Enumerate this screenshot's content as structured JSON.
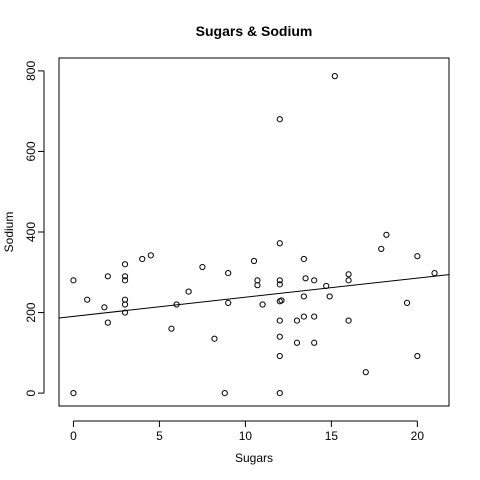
{
  "chart_data": {
    "type": "scatter",
    "title": "Sugars & Sodium",
    "xlabel": "Sugars",
    "ylabel": "Sodium",
    "xlim": [
      -0.84,
      21.84
    ],
    "ylim": [
      -32,
      832
    ],
    "x_ticks": [
      "0",
      "5",
      "10",
      "15",
      "20"
    ],
    "y_ticks": [
      "0",
      "200",
      "400",
      "600",
      "800"
    ],
    "grid": false,
    "legend": "none",
    "points": [
      {
        "x": 0,
        "y": 280
      },
      {
        "x": 0,
        "y": 0
      },
      {
        "x": 0.8,
        "y": 232
      },
      {
        "x": 1.8,
        "y": 213
      },
      {
        "x": 2,
        "y": 290
      },
      {
        "x": 2,
        "y": 175
      },
      {
        "x": 3,
        "y": 320
      },
      {
        "x": 3,
        "y": 290
      },
      {
        "x": 3,
        "y": 280
      },
      {
        "x": 3,
        "y": 232
      },
      {
        "x": 3,
        "y": 220
      },
      {
        "x": 3,
        "y": 200
      },
      {
        "x": 4,
        "y": 333
      },
      {
        "x": 4.5,
        "y": 342
      },
      {
        "x": 5.7,
        "y": 160
      },
      {
        "x": 6,
        "y": 220
      },
      {
        "x": 6.7,
        "y": 252
      },
      {
        "x": 7.5,
        "y": 313
      },
      {
        "x": 8.2,
        "y": 135
      },
      {
        "x": 8.8,
        "y": 0
      },
      {
        "x": 9,
        "y": 298
      },
      {
        "x": 9,
        "y": 224
      },
      {
        "x": 10.5,
        "y": 328
      },
      {
        "x": 10.7,
        "y": 280
      },
      {
        "x": 10.7,
        "y": 268
      },
      {
        "x": 11,
        "y": 220
      },
      {
        "x": 12,
        "y": 680
      },
      {
        "x": 12,
        "y": 372
      },
      {
        "x": 12,
        "y": 280
      },
      {
        "x": 12,
        "y": 270
      },
      {
        "x": 12,
        "y": 228
      },
      {
        "x": 12.1,
        "y": 230
      },
      {
        "x": 12,
        "y": 180
      },
      {
        "x": 12,
        "y": 140
      },
      {
        "x": 12,
        "y": 92
      },
      {
        "x": 12,
        "y": 0
      },
      {
        "x": 13,
        "y": 180
      },
      {
        "x": 13,
        "y": 125
      },
      {
        "x": 13.4,
        "y": 333
      },
      {
        "x": 13.4,
        "y": 240
      },
      {
        "x": 13.4,
        "y": 190
      },
      {
        "x": 13.5,
        "y": 285
      },
      {
        "x": 14,
        "y": 280
      },
      {
        "x": 14,
        "y": 190
      },
      {
        "x": 14,
        "y": 125
      },
      {
        "x": 14.7,
        "y": 266
      },
      {
        "x": 14.9,
        "y": 240
      },
      {
        "x": 15.2,
        "y": 787
      },
      {
        "x": 16,
        "y": 295
      },
      {
        "x": 16,
        "y": 280
      },
      {
        "x": 16,
        "y": 180
      },
      {
        "x": 17,
        "y": 52
      },
      {
        "x": 17.9,
        "y": 358
      },
      {
        "x": 18.2,
        "y": 393
      },
      {
        "x": 19.4,
        "y": 224
      },
      {
        "x": 20,
        "y": 340
      },
      {
        "x": 20,
        "y": 92
      },
      {
        "x": 21,
        "y": 298
      }
    ],
    "regression_line": {
      "intercept": 190.5,
      "slope": 4.75
    }
  }
}
